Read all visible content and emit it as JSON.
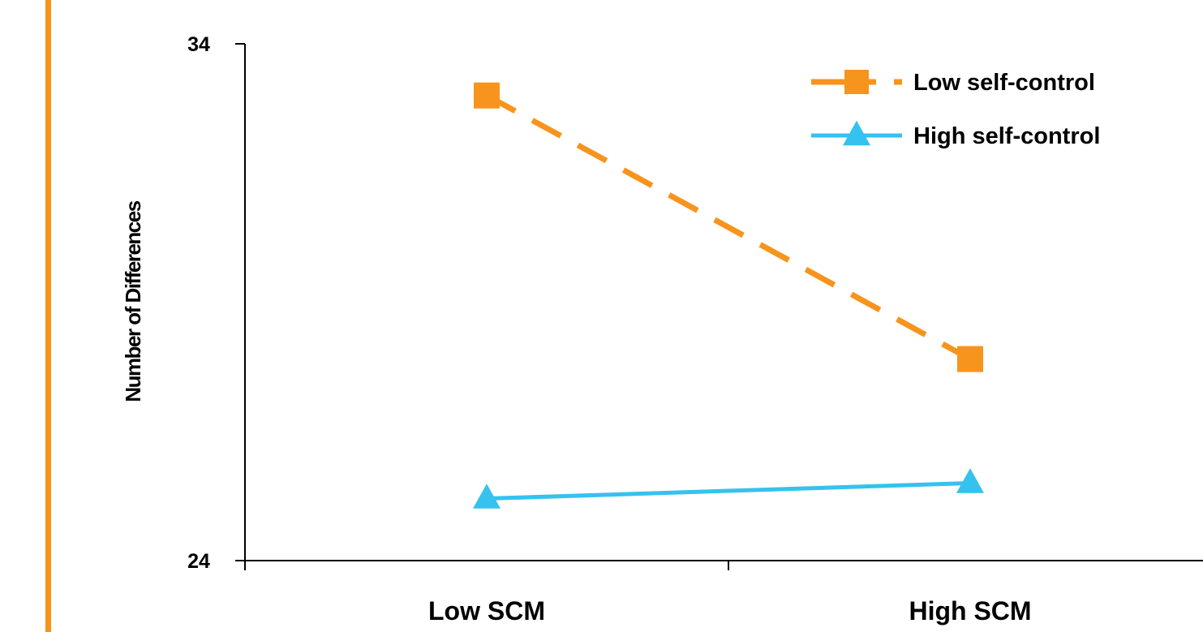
{
  "chart_data": {
    "type": "line",
    "title": "",
    "xlabel": "",
    "ylabel": "Number of Differences",
    "categories": [
      "Low SCM",
      "High SCM"
    ],
    "ylim": [
      24,
      34
    ],
    "yticks": [
      "34",
      "24"
    ],
    "grid": false,
    "legend_position": "top-right",
    "series": [
      {
        "name": "Low self-control",
        "values": [
          33.0,
          27.9
        ],
        "color": "#F7941D",
        "line_style": "dashed",
        "marker": "square"
      },
      {
        "name": "High self-control",
        "values": [
          25.2,
          25.5
        ],
        "color": "#35C2EE",
        "line_style": "solid",
        "marker": "triangle"
      }
    ]
  },
  "colors": {
    "accent_bar": "#F7941D",
    "axis": "#000000"
  }
}
